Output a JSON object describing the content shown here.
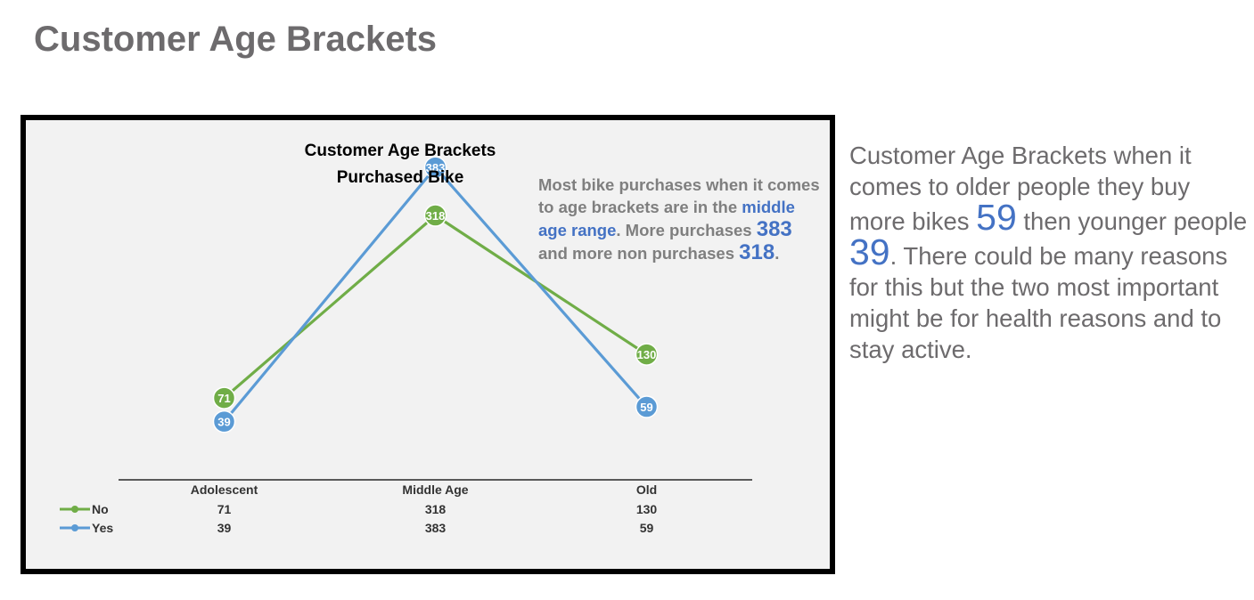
{
  "page": {
    "heading": "Customer Age Brackets"
  },
  "chart_data": {
    "type": "line",
    "title": "Customer Age Brackets",
    "subtitle": "Purchased  Bike",
    "categories": [
      "Adolescent",
      "Middle Age",
      "Old"
    ],
    "series": [
      {
        "name": "No",
        "values": [
          71,
          318,
          130
        ],
        "color": "#70ad47"
      },
      {
        "name": "Yes",
        "values": [
          39,
          383,
          59
        ],
        "color": "#5b9bd5"
      }
    ],
    "ylim": [
      0,
      400
    ],
    "grid": false,
    "legend": "data-table-bottom-left",
    "data_labels": true,
    "annotation": {
      "p1": "Most bike purchases when it comes to age brackets are in the",
      "p2": "middle age range",
      "p3": ". More purchases",
      "num1": "383",
      "p4": "and more non purchases",
      "num2": "318",
      "p5": "."
    }
  },
  "side_note": {
    "p1": "Customer Age Brackets when it comes to older people they buy more bikes",
    "num1": "59",
    "p2": "then younger people",
    "num2": "39",
    "p3": ". There could be many reasons for this but the two most important might be for health reasons and to stay active."
  }
}
